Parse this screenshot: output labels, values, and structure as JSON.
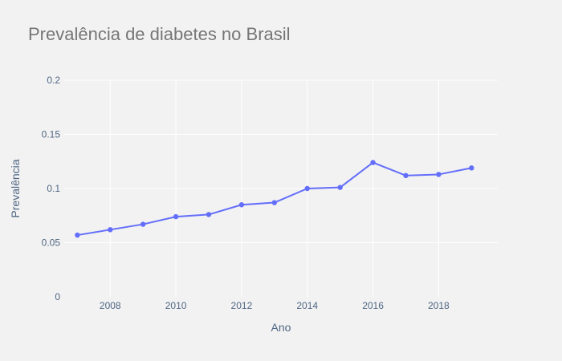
{
  "chart_data": {
    "type": "line",
    "title": "Prevalência de diabetes no Brasil",
    "xlabel": "Ano",
    "ylabel": "Prevalência",
    "xlim": [
      2006.6,
      2019.8
    ],
    "ylim": [
      0,
      0.2
    ],
    "xticks": [
      2008,
      2010,
      2012,
      2014,
      2016,
      2018
    ],
    "yticks": [
      0,
      0.05,
      0.1,
      0.15,
      0.2
    ],
    "ytick_labels": [
      "0",
      "0.05",
      "0.1",
      "0.15",
      "0.2"
    ],
    "grid": true,
    "series": [
      {
        "color": "#636efa",
        "mode": "lines+markers",
        "x": [
          2007,
          2008,
          2009,
          2010,
          2011,
          2012,
          2013,
          2014,
          2015,
          2016,
          2017,
          2018,
          2019
        ],
        "y": [
          0.057,
          0.062,
          0.067,
          0.074,
          0.076,
          0.085,
          0.087,
          0.1,
          0.101,
          0.124,
          0.112,
          0.113,
          0.119
        ]
      }
    ]
  },
  "colors": {
    "background": "#f2f2f2",
    "grid": "#ffffff",
    "line": "#636efa",
    "title": "#767676",
    "axis_text": "#506784"
  }
}
